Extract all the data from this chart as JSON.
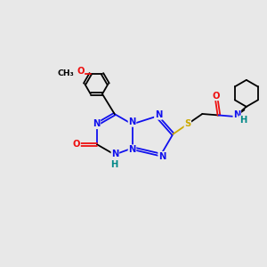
{
  "bg_color": "#e8e8e8",
  "atom_colors": {
    "C": "#000000",
    "N": "#1010ee",
    "O": "#ee1010",
    "S": "#ccaa00",
    "H": "#008888"
  },
  "lw": 1.3,
  "fs": 7.2
}
